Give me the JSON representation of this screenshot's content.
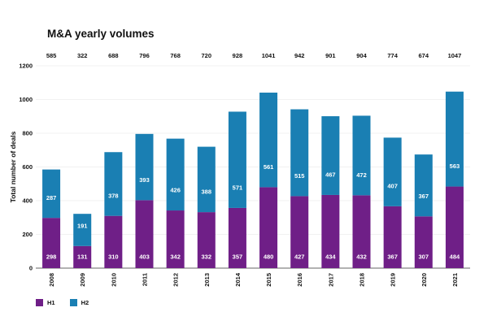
{
  "chart_data": {
    "type": "bar",
    "stacked": true,
    "title": "M&A yearly volumes",
    "xlabel": "",
    "ylabel": "Total number of deals",
    "ylim": [
      0,
      1200
    ],
    "yticks": [
      0,
      200,
      400,
      600,
      800,
      1000,
      1200
    ],
    "grid": true,
    "legend_position": "bottom-left",
    "categories": [
      "2008",
      "2009",
      "2010",
      "2011",
      "2012",
      "2013",
      "2014",
      "2015",
      "2016",
      "2017",
      "2018",
      "2019",
      "2020",
      "2021"
    ],
    "totals": [
      585,
      322,
      688,
      796,
      768,
      720,
      928,
      1041,
      942,
      901,
      904,
      774,
      674,
      1047
    ],
    "series": [
      {
        "name": "H1",
        "color": "#6f1f87",
        "values": [
          298,
          131,
          310,
          403,
          342,
          332,
          357,
          480,
          427,
          434,
          432,
          367,
          307,
          484
        ]
      },
      {
        "name": "H2",
        "color": "#1a7fb3",
        "values": [
          287,
          191,
          378,
          393,
          426,
          388,
          571,
          561,
          515,
          467,
          472,
          407,
          367,
          563
        ]
      }
    ]
  }
}
